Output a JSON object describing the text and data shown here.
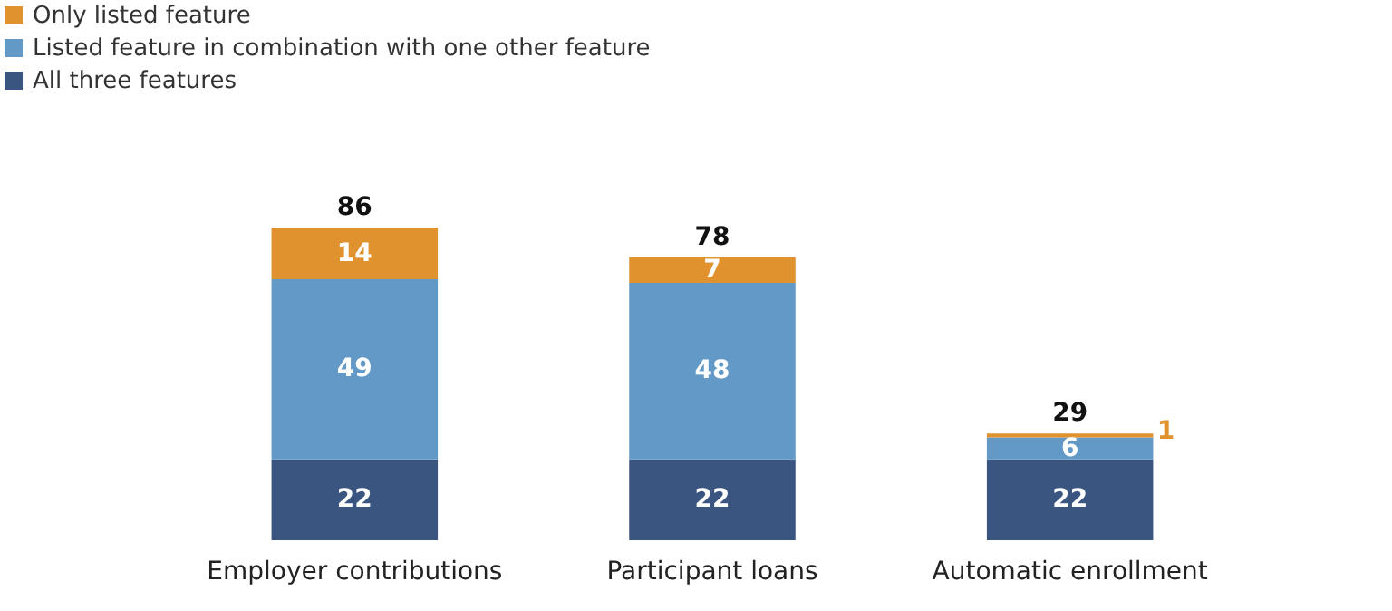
{
  "chart_data": {
    "type": "bar",
    "stacked": true,
    "data_labels": true,
    "legend": "top left",
    "categories": [
      "Employer contributions",
      "Participant loans",
      "Automatic enrollment"
    ],
    "series": [
      {
        "name": "All three features",
        "color": "#3a5680",
        "values": [
          22,
          22,
          22
        ]
      },
      {
        "name": "Listed feature in combination with one other feature",
        "color": "#6399c7",
        "values": [
          49,
          48,
          6
        ]
      },
      {
        "name": "Only listed feature",
        "color": "#e0922f",
        "values": [
          14,
          7,
          1
        ]
      }
    ],
    "totals": [
      "86",
      "78",
      "29"
    ]
  }
}
